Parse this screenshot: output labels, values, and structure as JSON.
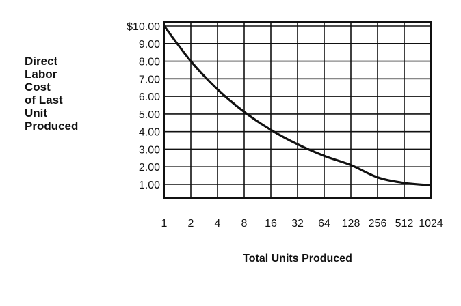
{
  "chart_data": {
    "type": "line",
    "title": "",
    "ylabel_lines": [
      "Direct",
      "Labor",
      "Cost",
      "of Last",
      "Unit",
      "Produced"
    ],
    "xlabel": "Total Units Produced",
    "x_scale": "log2",
    "x_ticks": [
      "1",
      "2",
      "4",
      "8",
      "16",
      "32",
      "64",
      "128",
      "256",
      "512",
      "1024"
    ],
    "y_ticks": [
      "$10.00",
      "9.00",
      "8.00",
      "7.00",
      "6.00",
      "5.00",
      "4.00",
      "3.00",
      "2.00",
      "1.00"
    ],
    "ylim": [
      0,
      10
    ],
    "grid": true,
    "series": [
      {
        "x": [
          1,
          2,
          4,
          8,
          16,
          32,
          64,
          128,
          256,
          512,
          1024
        ],
        "y": [
          10.0,
          8.0,
          6.4,
          5.12,
          4.1,
          3.28,
          2.62,
          2.1,
          1.4,
          1.08,
          0.95
        ]
      }
    ]
  },
  "colors": {
    "line": "#111111",
    "grid": "#111111",
    "background": "#ffffff"
  }
}
